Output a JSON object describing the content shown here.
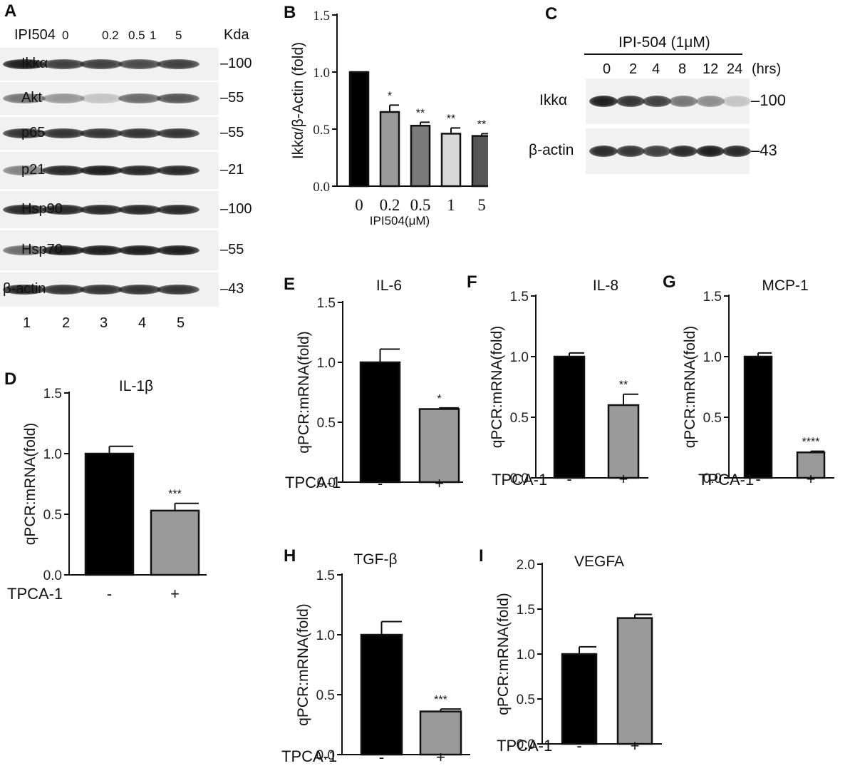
{
  "panel_letters": [
    "A",
    "B",
    "C",
    "D",
    "E",
    "F",
    "G",
    "H",
    "I"
  ],
  "blot_a": {
    "header": {
      "left": "IPI504",
      "doses": [
        "0",
        "0.2",
        "0.5",
        "1",
        "5"
      ],
      "right": "Kda"
    },
    "rows": [
      {
        "name": "Ikkα",
        "marker": "–100",
        "intensity": [
          0.95,
          0.8,
          0.8,
          0.75,
          0.8
        ]
      },
      {
        "name": "Akt",
        "marker": "–55",
        "intensity": [
          0.55,
          0.4,
          0.2,
          0.6,
          0.7
        ]
      },
      {
        "name": "p65",
        "marker": "–55",
        "intensity": [
          0.85,
          0.85,
          0.85,
          0.85,
          0.85
        ]
      },
      {
        "name": "p21",
        "marker": "–21",
        "intensity": [
          0.5,
          0.9,
          0.95,
          0.9,
          0.9
        ]
      },
      {
        "name": "Hsp90",
        "marker": "–100",
        "intensity": [
          0.9,
          0.9,
          0.9,
          0.9,
          0.9
        ]
      },
      {
        "name": "Hsp70",
        "marker": "–55",
        "intensity": [
          0.6,
          0.95,
          0.95,
          0.95,
          0.95
        ]
      },
      {
        "name": "β-actin",
        "marker": "–43",
        "intensity": [
          0.9,
          0.85,
          0.85,
          0.85,
          0.85
        ]
      }
    ],
    "lanes": [
      "1",
      "2",
      "3",
      "4",
      "5"
    ]
  },
  "blot_c": {
    "title": "IPI-504 (1μM)",
    "times": [
      "0",
      "2",
      "4",
      "8",
      "12",
      "24"
    ],
    "time_unit": "(hrs)",
    "rows": [
      {
        "name": "Ikkα",
        "marker": "–100",
        "intensity": [
          0.95,
          0.85,
          0.8,
          0.55,
          0.45,
          0.2
        ]
      },
      {
        "name": "β-actin",
        "marker": "–43",
        "intensity": [
          0.9,
          0.85,
          0.8,
          0.9,
          0.95,
          0.9
        ]
      }
    ]
  },
  "chart_data": [
    {
      "panel": "B",
      "type": "bar",
      "title": "",
      "categories": [
        "0",
        "0.2",
        "0.5",
        "1",
        "5"
      ],
      "values": [
        1.0,
        0.65,
        0.53,
        0.46,
        0.44
      ],
      "errors": [
        0,
        0.06,
        0.03,
        0.05,
        0.02
      ],
      "significance": [
        "",
        "*",
        "**",
        "**",
        "**"
      ],
      "colors": [
        "#000000",
        "#9a9a9a",
        "#7a7a7a",
        "#d8d8d8",
        "#555555"
      ],
      "xlabel": "IPI504(μM)",
      "ylabel": "Ikkα/β-Actin (fold)",
      "ylim": [
        0,
        1.5
      ],
      "yticks": [
        "0.0",
        "0.5",
        "1.0",
        "1.5"
      ],
      "font": "serif"
    },
    {
      "panel": "D",
      "type": "bar",
      "title": "IL-1β",
      "categories": [
        "-",
        "+"
      ],
      "values": [
        1.0,
        0.53
      ],
      "errors": [
        0.06,
        0.06
      ],
      "significance": [
        "",
        "***"
      ],
      "colors": [
        "#000000",
        "#9a9a9a"
      ],
      "xlabel": "TPCA-1",
      "ylabel": "qPCR:mRNA(fold)",
      "ylim": [
        0,
        1.5
      ],
      "yticks": [
        "0.0",
        "0.5",
        "1.0",
        "1.5"
      ]
    },
    {
      "panel": "E",
      "type": "bar",
      "title": "IL-6",
      "categories": [
        "-",
        "+"
      ],
      "values": [
        1.0,
        0.61
      ],
      "errors": [
        0.11,
        0.01
      ],
      "significance": [
        "",
        "*"
      ],
      "colors": [
        "#000000",
        "#9a9a9a"
      ],
      "xlabel": "TPCA-1",
      "ylabel": "qPCR:mRNA(fold)",
      "ylim": [
        0,
        1.5
      ],
      "yticks": [
        "0.0",
        "0.5",
        "1.0",
        "1.5"
      ]
    },
    {
      "panel": "F",
      "type": "bar",
      "title": "IL-8",
      "categories": [
        "-",
        "+"
      ],
      "values": [
        1.0,
        0.6
      ],
      "errors": [
        0.03,
        0.09
      ],
      "significance": [
        "",
        "**"
      ],
      "colors": [
        "#000000",
        "#9a9a9a"
      ],
      "xlabel": "TPCA-1",
      "ylabel": "qPCR:mRNA(fold)",
      "ylim": [
        0,
        1.5
      ],
      "yticks": [
        "0.0",
        "0.5",
        "1.0",
        "1.5"
      ]
    },
    {
      "panel": "G",
      "type": "bar",
      "title": "MCP-1",
      "categories": [
        "-",
        "+"
      ],
      "values": [
        1.0,
        0.21
      ],
      "errors": [
        0.03,
        0.01
      ],
      "significance": [
        "",
        "****"
      ],
      "colors": [
        "#000000",
        "#9a9a9a"
      ],
      "xlabel": "TPCA-1",
      "ylabel": "qPCR:mRNA(fold)",
      "ylim": [
        0,
        1.5
      ],
      "yticks": [
        "0.0",
        "0.5",
        "1.0",
        "1.5"
      ]
    },
    {
      "panel": "H",
      "type": "bar",
      "title": "TGF-β",
      "categories": [
        "-",
        "+"
      ],
      "values": [
        1.0,
        0.36
      ],
      "errors": [
        0.11,
        0.02
      ],
      "significance": [
        "",
        "***"
      ],
      "colors": [
        "#000000",
        "#9a9a9a"
      ],
      "xlabel": "TPCA-1",
      "ylabel": "qPCR:mRNA(fold)",
      "ylim": [
        0,
        1.5
      ],
      "yticks": [
        "0.0",
        "0.5",
        "1.0",
        "1.5"
      ]
    },
    {
      "panel": "I",
      "type": "bar",
      "title": "VEGFA",
      "categories": [
        "-",
        "+"
      ],
      "values": [
        1.0,
        1.4
      ],
      "errors": [
        0.08,
        0.04
      ],
      "significance": [
        "",
        ""
      ],
      "colors": [
        "#000000",
        "#9a9a9a"
      ],
      "xlabel": "TPCA-1",
      "ylabel": "qPCR:mRNA(fold)",
      "ylim": [
        0,
        2.0
      ],
      "yticks": [
        "0.0",
        "0.5",
        "1.0",
        "1.5",
        "2.0"
      ]
    }
  ]
}
